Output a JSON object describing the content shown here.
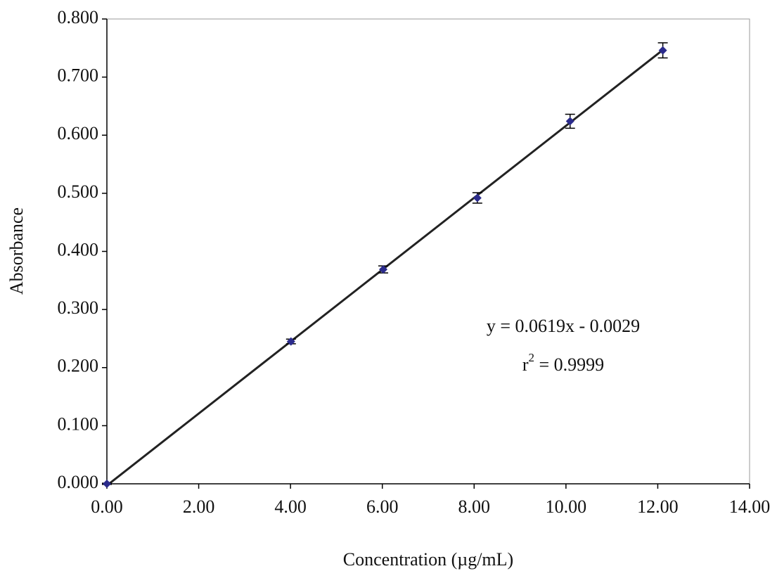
{
  "chart_data": {
    "type": "scatter",
    "x_label": "Concentration (µg/mL)",
    "y_label": "Absorbance",
    "series": [
      {
        "name": "Absorbance",
        "color": "#2b2b8c",
        "x": [
          0,
          4.01,
          6.02,
          8.07,
          10.09,
          12.11
        ],
        "values": [
          0.0,
          0.245,
          0.369,
          0.492,
          0.624,
          0.746
        ],
        "error": [
          0.001,
          0.004,
          0.006,
          0.009,
          0.012,
          0.013
        ]
      }
    ],
    "trendline": {
      "color": "#222222",
      "x": [
        0,
        12.11
      ],
      "values": [
        -0.0029,
        0.7467
      ]
    },
    "annotation": {
      "equation": "y = 0.0619x - 0.0029",
      "r2": [
        "r",
        "2",
        " = 0.9999"
      ]
    },
    "xlim": [
      0,
      14
    ],
    "xticks": [
      {
        "value": 0,
        "label": "0.00"
      },
      {
        "value": 2,
        "label": "2.00"
      },
      {
        "value": 4,
        "label": "4.00"
      },
      {
        "value": 6,
        "label": "6.00"
      },
      {
        "value": 8,
        "label": "8.00"
      },
      {
        "value": 10,
        "label": "10.00"
      },
      {
        "value": 12,
        "label": "12.00"
      },
      {
        "value": 14,
        "label": "14.00"
      }
    ],
    "ylim": [
      0,
      0.8
    ],
    "yticks": [
      {
        "value": 0,
        "label": "0.000"
      },
      {
        "value": 0.1,
        "label": "0.100"
      },
      {
        "value": 0.2,
        "label": "0.200"
      },
      {
        "value": 0.3,
        "label": "0.300"
      },
      {
        "value": 0.4,
        "label": "0.400"
      },
      {
        "value": 0.5,
        "label": "0.500"
      },
      {
        "value": 0.6,
        "label": "0.600"
      },
      {
        "value": 0.7,
        "label": "0.700"
      },
      {
        "value": 0.8,
        "label": "0.800"
      }
    ],
    "grid": false
  }
}
